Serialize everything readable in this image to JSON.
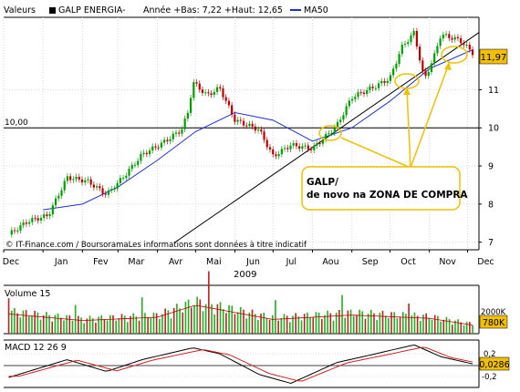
{
  "header": {
    "label": "Valeurs",
    "title": "GALP ENERGIA-",
    "stats": "Année +Bas: 7,22 +Haut: 12,65",
    "ma_legend": "MA50"
  },
  "annotation": {
    "line1": "GALP/",
    "line2": "de novo na ZONA DE COMPRA"
  },
  "credit": "© IT-Finance.com / BoursoramaLes informations sont données à titre indicatif",
  "price_panel": {
    "last_value": "11,97",
    "ref_level_label": "10,00",
    "yticks": [
      "7",
      "8",
      "9",
      "10",
      "11"
    ]
  },
  "x_axis": {
    "months": [
      "Dec",
      "Jan",
      "Fev",
      "Mar",
      "Avr",
      "Mai",
      "Jun",
      "Jul",
      "Aou",
      "Sep",
      "Oct",
      "Nov",
      "Dec"
    ],
    "year_label": "2009"
  },
  "volume_panel": {
    "label": "Volume 15",
    "tick": "2000K",
    "last_value": "780K"
  },
  "macd_panel": {
    "label": "MACD 12 26 9",
    "ticks": [
      "0,2",
      "-0,2"
    ],
    "last_value": "0,0286"
  },
  "colors": {
    "candle_up": "#00a000",
    "candle_down": "#c00000",
    "ma50": "#1f2fd0",
    "highlight": "#f0c000",
    "value_box": "#f0c000",
    "volume": "#20b020",
    "macd_signal": "#d02020"
  },
  "chart_data": {
    "type": "candlestick",
    "title": "GALP ENERGIA-",
    "x_range": [
      "2008-12-01",
      "2009-12-10"
    ],
    "y_range": [
      6.8,
      12.9
    ],
    "price_trace": [
      [
        "2008-12-05",
        7.2
      ],
      [
        "2008-12-20",
        7.55
      ],
      [
        "2009-01-05",
        7.7
      ],
      [
        "2009-01-20",
        8.7
      ],
      [
        "2009-02-05",
        8.6
      ],
      [
        "2009-02-20",
        8.25
      ],
      [
        "2009-03-05",
        8.7
      ],
      [
        "2009-03-20",
        9.3
      ],
      [
        "2009-04-05",
        9.6
      ],
      [
        "2009-04-20",
        9.95
      ],
      [
        "2009-04-25",
        10.4
      ],
      [
        "2009-04-29",
        11.2
      ],
      [
        "2009-05-10",
        10.85
      ],
      [
        "2009-05-20",
        11.05
      ],
      [
        "2009-06-01",
        10.2
      ],
      [
        "2009-06-20",
        9.95
      ],
      [
        "2009-07-01",
        9.25
      ],
      [
        "2009-07-15",
        9.55
      ],
      [
        "2009-08-01",
        9.45
      ],
      [
        "2009-08-20",
        10.05
      ],
      [
        "2009-09-01",
        10.8
      ],
      [
        "2009-09-20",
        11.1
      ],
      [
        "2009-10-01",
        11.3
      ],
      [
        "2009-10-10",
        12.1
      ],
      [
        "2009-10-20",
        12.5
      ],
      [
        "2009-10-28",
        11.25
      ],
      [
        "2009-11-05",
        11.9
      ],
      [
        "2009-11-10",
        12.45
      ],
      [
        "2009-11-25",
        12.3
      ],
      [
        "2009-12-05",
        11.97
      ]
    ],
    "ma50_trace": [
      [
        "2009-01-01",
        7.85
      ],
      [
        "2009-02-01",
        8.0
      ],
      [
        "2009-03-01",
        8.45
      ],
      [
        "2009-04-01",
        9.15
      ],
      [
        "2009-05-01",
        9.9
      ],
      [
        "2009-06-01",
        10.4
      ],
      [
        "2009-07-01",
        10.2
      ],
      [
        "2009-08-01",
        9.65
      ],
      [
        "2009-09-01",
        10.0
      ],
      [
        "2009-10-01",
        10.7
      ],
      [
        "2009-11-01",
        11.55
      ],
      [
        "2009-12-05",
        12.05
      ]
    ],
    "reference_level": 10.0,
    "trendline": [
      [
        "2009-04-15",
        7.0
      ],
      [
        "2009-12-10",
        12.5
      ]
    ],
    "volume_trace": [
      [
        "2008-12-05",
        1800
      ],
      [
        "2009-02-01",
        1200
      ],
      [
        "2009-04-01",
        1500
      ],
      [
        "2009-05-01",
        2600
      ],
      [
        "2009-07-01",
        1300
      ],
      [
        "2009-09-01",
        1700
      ],
      [
        "2009-11-01",
        1400
      ],
      [
        "2009-12-05",
        780
      ]
    ],
    "macd_trace": [
      [
        "2008-12-05",
        -0.2
      ],
      [
        "2009-01-20",
        0.1
      ],
      [
        "2009-02-20",
        -0.1
      ],
      [
        "2009-03-20",
        0.1
      ],
      [
        "2009-04-29",
        0.3
      ],
      [
        "2009-05-20",
        0.2
      ],
      [
        "2009-06-20",
        -0.15
      ],
      [
        "2009-07-15",
        -0.3
      ],
      [
        "2009-08-20",
        0.05
      ],
      [
        "2009-09-20",
        0.2
      ],
      [
        "2009-10-20",
        0.35
      ],
      [
        "2009-11-10",
        0.15
      ],
      [
        "2009-12-05",
        0.0286
      ]
    ],
    "ylabel": ""
  }
}
